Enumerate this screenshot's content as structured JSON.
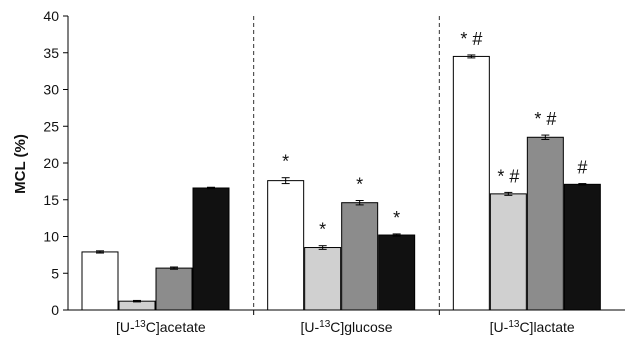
{
  "chart_data": {
    "type": "bar",
    "ylabel": "MCL (%)",
    "ylim": [
      0,
      40
    ],
    "yticks": [
      "0",
      "5",
      "10",
      "15",
      "20",
      "25",
      "30",
      "35",
      "40"
    ],
    "categories": [
      {
        "pre": "[U-",
        "sup": "13",
        "post": "C]acetate"
      },
      {
        "pre": "[U-",
        "sup": "13",
        "post": "C]glucose"
      },
      {
        "pre": "[U-",
        "sup": "13",
        "post": "C]lactate"
      }
    ],
    "series": [
      {
        "color": "#ffffff",
        "values": [
          7.9,
          17.6,
          34.5
        ],
        "errors": [
          0.15,
          0.4,
          0.2
        ]
      },
      {
        "color": "#d0d0d0",
        "values": [
          1.2,
          8.5,
          15.8
        ],
        "errors": [
          0.1,
          0.25,
          0.2
        ]
      },
      {
        "color": "#8c8c8c",
        "values": [
          5.7,
          14.6,
          23.5
        ],
        "errors": [
          0.15,
          0.3,
          0.3
        ]
      },
      {
        "color": "#111111",
        "values": [
          16.6,
          10.2,
          17.1
        ],
        "errors": [
          0.1,
          0.15,
          0.1
        ]
      }
    ],
    "annotations": [
      [
        "",
        "*",
        "* #"
      ],
      [
        "",
        "*",
        "* #"
      ],
      [
        "",
        "*",
        "* #"
      ],
      [
        "",
        "*",
        "#"
      ]
    ],
    "grid": false,
    "separators": "dashed"
  }
}
